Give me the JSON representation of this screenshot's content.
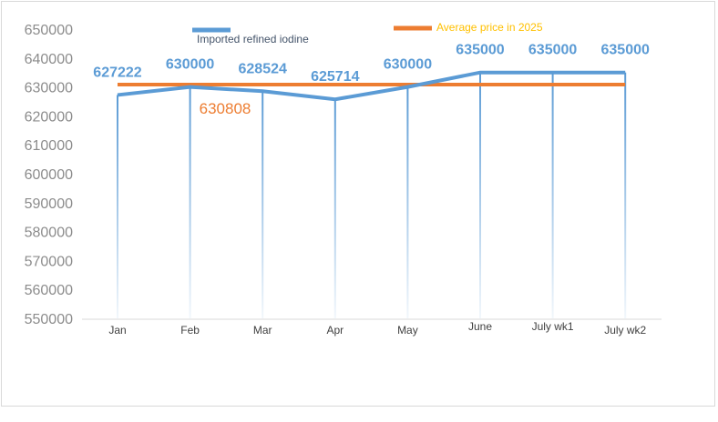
{
  "chart_data": {
    "type": "line",
    "title": "",
    "xlabel": "",
    "ylabel": "",
    "categories": [
      "Jan",
      "Feb",
      "Mar",
      "Apr",
      "May",
      "June",
      "July wk1",
      "July wk2"
    ],
    "series": [
      {
        "name": "Imported refined iodine",
        "values": [
          627222,
          630000,
          628524,
          625714,
          630000,
          635000,
          635000,
          635000
        ],
        "color": "#5b9bd5"
      },
      {
        "name": "Average price in 2025",
        "values": [
          630808,
          630808,
          630808,
          630808,
          630808,
          630808,
          630808,
          630808
        ],
        "color": "#ed7d31",
        "label": "630808"
      }
    ],
    "ylim": [
      550000,
      650000
    ],
    "yticks": [
      550000,
      560000,
      570000,
      580000,
      590000,
      600000,
      610000,
      620000,
      630000,
      640000,
      650000
    ],
    "grid": false,
    "drop_lines": true,
    "legend_position": "top"
  }
}
